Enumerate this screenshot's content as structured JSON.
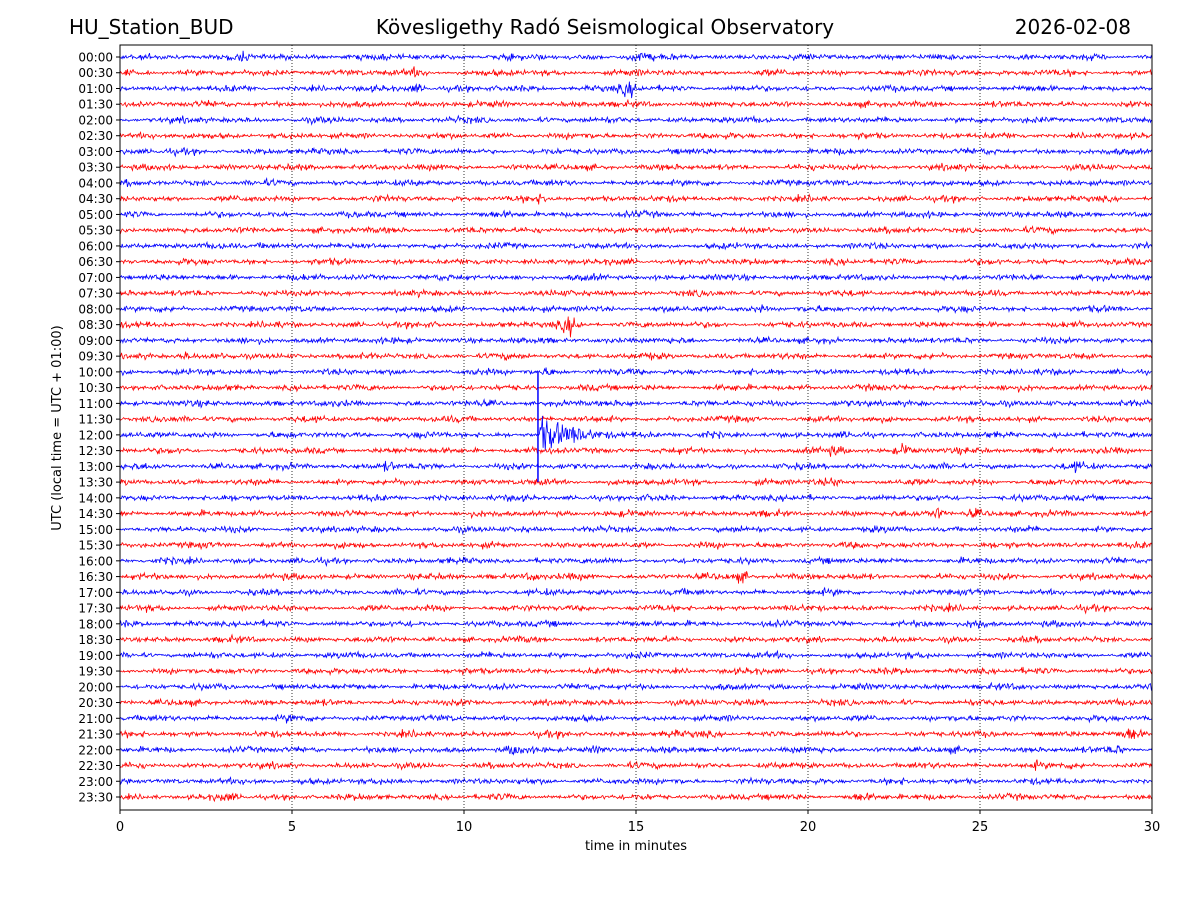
{
  "header": {
    "station": "HU_Station_BUD",
    "observatory": "Kövesligethy Radó Seismological Observatory",
    "date": "2026-02-08"
  },
  "chart_data": {
    "type": "line",
    "subtype": "helicorder",
    "xlabel": "time in minutes",
    "ylabel": "UTC (local time = UTC + 01:00)",
    "xlim": [
      0,
      30
    ],
    "xticks": [
      0,
      5,
      10,
      15,
      20,
      25,
      30
    ],
    "grid": "vertical dotted at 5, 10, 15, 20, 25",
    "row_labels": [
      "00:00",
      "00:30",
      "01:00",
      "01:30",
      "02:00",
      "02:30",
      "03:00",
      "03:30",
      "04:00",
      "04:30",
      "05:00",
      "05:30",
      "06:00",
      "06:30",
      "07:00",
      "07:30",
      "08:00",
      "08:30",
      "09:00",
      "09:30",
      "10:00",
      "10:30",
      "11:00",
      "11:30",
      "12:00",
      "12:30",
      "13:00",
      "13:30",
      "14:00",
      "14:30",
      "15:00",
      "15:30",
      "16:00",
      "16:30",
      "17:00",
      "17:30",
      "18:00",
      "18:30",
      "19:00",
      "19:30",
      "20:00",
      "20:30",
      "21:00",
      "21:30",
      "22:00",
      "22:30",
      "23:00",
      "23:30"
    ],
    "colors": [
      "#0000ff",
      "#ff0000"
    ],
    "events": [
      {
        "row": "00:00",
        "minute": 3.5,
        "amp": 1.5
      },
      {
        "row": "00:00",
        "minute": 15.0,
        "amp": 1.8
      },
      {
        "row": "00:30",
        "minute": 8.6,
        "amp": 1.6
      },
      {
        "row": "00:30",
        "minute": 24.3,
        "amp": 1.4
      },
      {
        "row": "01:00",
        "minute": 8.6,
        "amp": 1.8
      },
      {
        "row": "01:00",
        "minute": 14.8,
        "amp": 2.3
      },
      {
        "row": "04:30",
        "minute": 12.3,
        "amp": 1.6
      },
      {
        "row": "06:00",
        "minute": 4.2,
        "amp": 1.5
      },
      {
        "row": "08:00",
        "minute": 11.3,
        "amp": 1.5
      },
      {
        "row": "08:00",
        "minute": 18.6,
        "amp": 1.5
      },
      {
        "row": "08:30",
        "minute": 13.1,
        "amp": 2.6
      },
      {
        "row": "09:30",
        "minute": 1.9,
        "amp": 1.7
      },
      {
        "row": "10:00",
        "minute": 12.5,
        "amp": 1.5
      },
      {
        "row": "12:00",
        "minute": 12.2,
        "amp": 5.5
      },
      {
        "row": "12:30",
        "minute": 22.8,
        "amp": 2.0
      },
      {
        "row": "12:30",
        "minute": 20.8,
        "amp": 1.5
      },
      {
        "row": "13:00",
        "minute": 7.8,
        "amp": 1.8
      },
      {
        "row": "13:00",
        "minute": 27.8,
        "amp": 1.6
      },
      {
        "row": "13:30",
        "minute": 20.7,
        "amp": 1.6
      },
      {
        "row": "14:30",
        "minute": 23.8,
        "amp": 2.0
      },
      {
        "row": "14:30",
        "minute": 24.8,
        "amp": 1.7
      },
      {
        "row": "16:30",
        "minute": 12.0,
        "amp": 1.8
      },
      {
        "row": "16:30",
        "minute": 18.1,
        "amp": 1.9
      },
      {
        "row": "18:00",
        "minute": 24.9,
        "amp": 2.0
      },
      {
        "row": "21:00",
        "minute": 5.0,
        "amp": 1.4
      },
      {
        "row": "21:30",
        "minute": 16.0,
        "amp": 1.5
      },
      {
        "row": "21:30",
        "minute": 29.4,
        "amp": 2.2
      },
      {
        "row": "22:00",
        "minute": 11.5,
        "amp": 1.8
      },
      {
        "row": "22:00",
        "minute": 13.9,
        "amp": 1.5
      },
      {
        "row": "22:00",
        "minute": 29.0,
        "amp": 1.7
      },
      {
        "row": "22:30",
        "minute": 26.6,
        "amp": 1.7
      },
      {
        "row": "23:00",
        "minute": 5.4,
        "amp": 1.3
      },
      {
        "row": "23:30",
        "minute": 3.1,
        "amp": 1.4
      },
      {
        "row": "23:30",
        "minute": 21.5,
        "amp": 1.5
      }
    ],
    "spike": {
      "minute": 12.15,
      "from_row": "10:00",
      "to_row": "13:30"
    }
  }
}
